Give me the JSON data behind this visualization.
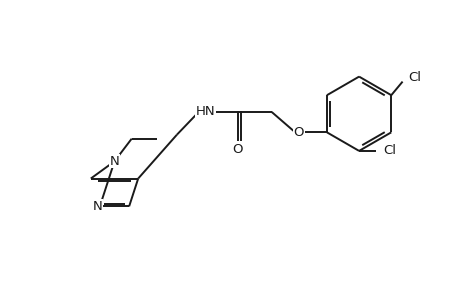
{
  "background_color": "#ffffff",
  "line_color": "#1a1a1a",
  "line_width": 1.4,
  "font_size": 9.5,
  "figsize": [
    4.6,
    3.0
  ],
  "dpi": 100,
  "xlim": [
    0,
    10
  ],
  "ylim": [
    0,
    6.5
  ]
}
